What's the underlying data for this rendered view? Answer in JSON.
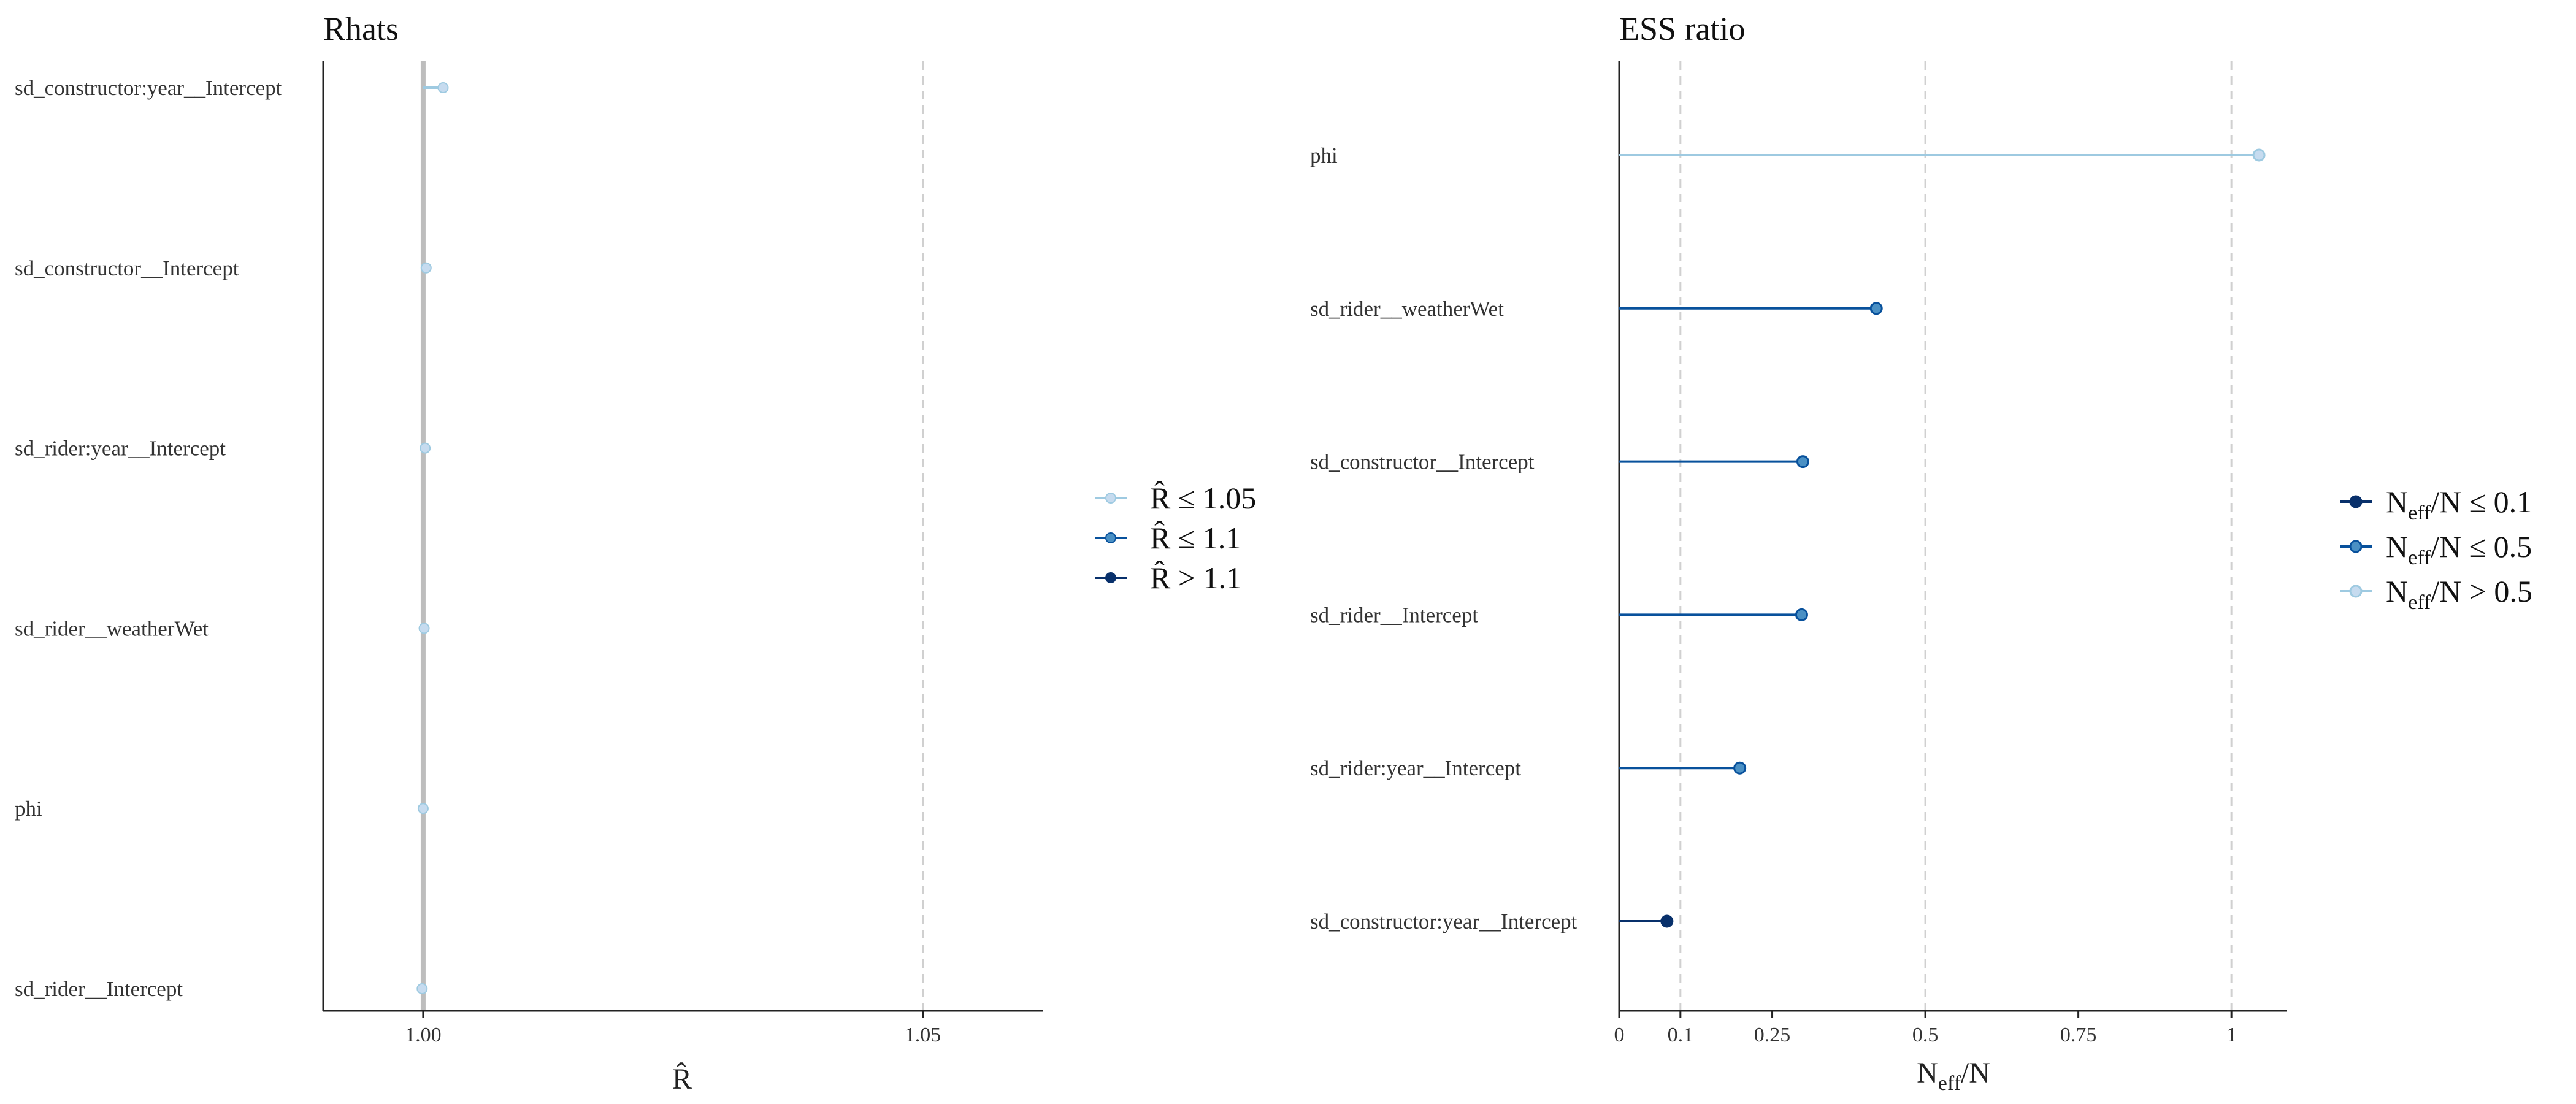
{
  "chart_data": [
    {
      "type": "scatter",
      "title": "Rhats",
      "xlabel": "R̂",
      "xlim": [
        0.99,
        1.062
      ],
      "reference_line": 1.0,
      "xticks": [
        1.0,
        1.05
      ],
      "xtick_labels": [
        "1.00",
        "1.05"
      ],
      "grid": "vertical dashed at ticks",
      "categories": [
        "sd_constructor:year__Intercept",
        "sd_constructor__Intercept",
        "sd_rider:year__Intercept",
        "sd_rider__weatherWet",
        "phi",
        "sd_rider__Intercept"
      ],
      "values": [
        1.002,
        1.0003,
        1.0002,
        1.0001,
        1.0,
        0.9999
      ],
      "point_class": [
        "le_1.05",
        "le_1.05",
        "le_1.05",
        "le_1.05",
        "le_1.05",
        "le_1.05"
      ],
      "legend": {
        "position": "right",
        "entries": [
          {
            "key": "le_1.05",
            "label_main": "R̂",
            "label_rest": " ≤ 1.05",
            "color": "#c6dbef"
          },
          {
            "key": "le_1.1",
            "label_main": "R̂",
            "label_rest": " ≤ 1.1",
            "color": "#6baed6"
          },
          {
            "key": "gt_1.1",
            "label_main": "R̂",
            "label_rest": " > 1.1",
            "color": "#08306b"
          }
        ]
      }
    },
    {
      "type": "lollipop",
      "title": "ESS ratio",
      "xlabel_main": "N",
      "xlabel_sub": "eff",
      "xlabel_rest": "/N",
      "xlim": [
        0,
        1.09
      ],
      "xticks": [
        0,
        0.1,
        0.25,
        0.5,
        0.75,
        1
      ],
      "xtick_labels": [
        "0",
        "0.1",
        "0.25",
        "0.5",
        "0.75",
        "1"
      ],
      "grid": "vertical dashed at 0.1, 0.5, 1",
      "categories": [
        "phi",
        "sd_rider__weatherWet",
        "sd_constructor__Intercept",
        "sd_rider__Intercept",
        "sd_rider:year__Intercept",
        "sd_constructor:year__Intercept"
      ],
      "values": [
        1.045,
        0.42,
        0.3,
        0.298,
        0.197,
        0.078
      ],
      "point_class": [
        "gt_0.5",
        "le_0.5",
        "le_0.5",
        "le_0.5",
        "le_0.5",
        "le_0.1"
      ],
      "legend": {
        "position": "right",
        "entries": [
          {
            "key": "le_0.1",
            "label_main": "N",
            "label_sub": "eff",
            "label_rest": "/N ≤ 0.1",
            "color": "#08306b"
          },
          {
            "key": "le_0.5",
            "label_main": "N",
            "label_sub": "eff",
            "label_rest": "/N ≤ 0.5",
            "color": "#6baed6"
          },
          {
            "key": "gt_0.5",
            "label_main": "N",
            "label_sub": "eff",
            "label_rest": "/N > 0.5",
            "color": "#c6dbef"
          }
        ]
      }
    }
  ],
  "colors": {
    "light": "#c6dbef",
    "light_line": "#9ecae1",
    "mid_fill": "#4a90c4",
    "mid_line": "#08519c",
    "dark": "#08306b",
    "ref_line": "#bdbdbd",
    "grid": "#d0d0d0",
    "axis": "#222222"
  }
}
